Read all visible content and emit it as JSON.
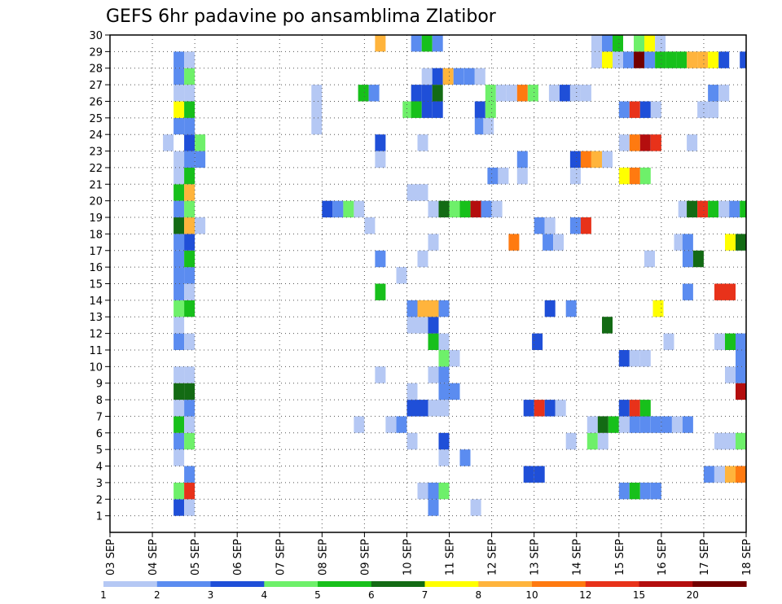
{
  "chart_data": {
    "type": "heatmap",
    "title": "GEFS 6hr padavine po ansamblima Zlatibor",
    "xlabel": "",
    "ylabel": "",
    "x_ticks": [
      "03 SEP",
      "04 SEP",
      "05 SEP",
      "06 SEP",
      "07 SEP",
      "08 SEP",
      "09 SEP",
      "10 SEP",
      "11 SEP",
      "12 SEP",
      "13 SEP",
      "14 SEP",
      "15 SEP",
      "16 SEP",
      "17 SEP",
      "18 SEP"
    ],
    "y_ticks": [
      "1",
      "2",
      "3",
      "4",
      "5",
      "6",
      "7",
      "8",
      "9",
      "10",
      "11",
      "12",
      "13",
      "14",
      "15",
      "16",
      "17",
      "18",
      "19",
      "20",
      "21",
      "22",
      "23",
      "24",
      "25",
      "26",
      "27",
      "28",
      "29",
      "30"
    ],
    "ylim": [
      0,
      30
    ],
    "grid": "dotted",
    "colorbar": {
      "labels": [
        "1",
        "2",
        "3",
        "4",
        "5",
        "6",
        "7",
        "8",
        "10",
        "12",
        "15",
        "20"
      ],
      "colors": [
        "#b5c8f4",
        "#5b8cf0",
        "#1f4fd8",
        "#6ef06a",
        "#17c01b",
        "#136b14",
        "#ffff00",
        "#ffb43c",
        "#ff7a10",
        "#e8321a",
        "#b40e0e",
        "#730000"
      ]
    },
    "cells": [
      [
        4.5,
        1,
        3
      ],
      [
        4.75,
        1,
        1
      ],
      [
        10.5,
        1,
        2
      ],
      [
        11.5,
        1,
        1
      ],
      [
        4.5,
        2,
        4
      ],
      [
        4.75,
        2,
        10
      ],
      [
        10.25,
        2,
        1
      ],
      [
        10.5,
        2,
        2
      ],
      [
        10.75,
        2,
        4
      ],
      [
        15,
        2,
        2
      ],
      [
        15.25,
        2,
        5
      ],
      [
        15.5,
        2,
        2
      ],
      [
        15.75,
        2,
        2
      ],
      [
        4.75,
        3,
        2
      ],
      [
        12.75,
        3,
        3
      ],
      [
        13,
        3,
        3
      ],
      [
        17,
        3,
        2
      ],
      [
        17.25,
        3,
        1
      ],
      [
        17.5,
        3,
        8
      ],
      [
        17.75,
        3,
        9
      ],
      [
        4.5,
        4,
        1
      ],
      [
        10.75,
        4,
        1
      ],
      [
        11.25,
        4,
        2
      ],
      [
        4.5,
        5,
        2
      ],
      [
        4.75,
        5,
        4
      ],
      [
        10,
        5,
        1
      ],
      [
        10.75,
        5,
        3
      ],
      [
        13.75,
        5,
        1
      ],
      [
        14.25,
        5,
        4
      ],
      [
        14.5,
        5,
        1
      ],
      [
        17.25,
        5,
        1
      ],
      [
        17.5,
        5,
        1
      ],
      [
        17.75,
        5,
        4
      ],
      [
        18,
        5,
        6
      ],
      [
        4.5,
        6,
        5
      ],
      [
        4.75,
        6,
        1
      ],
      [
        8.75,
        6,
        1
      ],
      [
        9.5,
        6,
        1
      ],
      [
        9.75,
        6,
        2
      ],
      [
        14.25,
        6,
        1
      ],
      [
        14.5,
        6,
        6
      ],
      [
        14.75,
        6,
        5
      ],
      [
        15,
        6,
        1
      ],
      [
        15.25,
        6,
        2
      ],
      [
        15.5,
        6,
        2
      ],
      [
        15.75,
        6,
        2
      ],
      [
        16,
        6,
        2
      ],
      [
        16.25,
        6,
        1
      ],
      [
        16.5,
        6,
        2
      ],
      [
        4.5,
        7,
        1
      ],
      [
        4.75,
        7,
        2
      ],
      [
        10,
        7,
        3
      ],
      [
        10.25,
        7,
        3
      ],
      [
        10.5,
        7,
        1
      ],
      [
        10.75,
        7,
        1
      ],
      [
        12.75,
        7,
        3
      ],
      [
        13,
        7,
        10
      ],
      [
        13.25,
        7,
        3
      ],
      [
        13.5,
        7,
        1
      ],
      [
        15,
        7,
        3
      ],
      [
        15.25,
        7,
        10
      ],
      [
        15.5,
        7,
        5
      ],
      [
        4.5,
        8,
        6
      ],
      [
        4.75,
        8,
        6
      ],
      [
        10,
        8,
        1
      ],
      [
        10.75,
        8,
        2
      ],
      [
        11,
        8,
        2
      ],
      [
        17.75,
        8,
        11
      ],
      [
        18,
        8,
        11
      ],
      [
        4.5,
        9,
        1
      ],
      [
        4.75,
        9,
        1
      ],
      [
        9.25,
        9,
        1
      ],
      [
        10.5,
        9,
        1
      ],
      [
        10.75,
        9,
        2
      ],
      [
        17.5,
        9,
        1
      ],
      [
        17.75,
        9,
        2
      ],
      [
        10.75,
        10,
        4
      ],
      [
        11,
        10,
        1
      ],
      [
        15,
        10,
        3
      ],
      [
        15.25,
        10,
        1
      ],
      [
        15.5,
        10,
        1
      ],
      [
        17.75,
        10,
        2
      ],
      [
        18,
        10,
        8
      ],
      [
        4.5,
        11,
        2
      ],
      [
        4.75,
        11,
        1
      ],
      [
        10.5,
        11,
        5
      ],
      [
        10.75,
        11,
        1
      ],
      [
        12.95,
        11,
        3
      ],
      [
        16.05,
        11,
        1
      ],
      [
        17.25,
        11,
        1
      ],
      [
        17.5,
        11,
        5
      ],
      [
        17.75,
        11,
        2
      ],
      [
        4.5,
        12,
        1
      ],
      [
        10,
        12,
        1
      ],
      [
        10.25,
        12,
        1
      ],
      [
        10.5,
        12,
        3
      ],
      [
        14.6,
        12,
        6
      ],
      [
        4.5,
        13,
        4
      ],
      [
        4.75,
        13,
        5
      ],
      [
        10,
        13,
        2
      ],
      [
        10.25,
        13,
        8
      ],
      [
        10.5,
        13,
        8
      ],
      [
        10.75,
        13,
        2
      ],
      [
        13.25,
        13,
        3
      ],
      [
        13.75,
        13,
        2
      ],
      [
        15.8,
        13,
        7
      ],
      [
        4.5,
        14,
        2
      ],
      [
        4.75,
        14,
        1
      ],
      [
        9.25,
        14,
        5
      ],
      [
        16.5,
        14,
        2
      ],
      [
        17.25,
        14,
        10
      ],
      [
        17.5,
        14,
        10
      ],
      [
        4.5,
        15,
        2
      ],
      [
        4.75,
        15,
        2
      ],
      [
        9.75,
        15,
        1
      ],
      [
        4.5,
        16,
        2
      ],
      [
        4.75,
        16,
        5
      ],
      [
        9.25,
        16,
        2
      ],
      [
        10.25,
        16,
        1
      ],
      [
        15.6,
        16,
        1
      ],
      [
        16.5,
        16,
        2
      ],
      [
        16.75,
        16,
        6
      ],
      [
        4.5,
        17,
        2
      ],
      [
        4.75,
        17,
        3
      ],
      [
        10.5,
        17,
        1
      ],
      [
        12.4,
        17,
        9
      ],
      [
        13.2,
        17,
        2
      ],
      [
        13.45,
        17,
        1
      ],
      [
        16.3,
        17,
        1
      ],
      [
        16.5,
        17,
        2
      ],
      [
        17.5,
        17,
        7
      ],
      [
        17.75,
        17,
        6
      ],
      [
        4.5,
        18,
        6
      ],
      [
        4.75,
        18,
        8
      ],
      [
        5,
        18,
        1
      ],
      [
        9,
        18,
        1
      ],
      [
        13,
        18,
        2
      ],
      [
        13.25,
        18,
        1
      ],
      [
        13.85,
        18,
        2
      ],
      [
        14.1,
        18,
        10
      ],
      [
        4.5,
        19,
        2
      ],
      [
        4.75,
        19,
        4
      ],
      [
        8,
        19,
        3
      ],
      [
        8.25,
        19,
        2
      ],
      [
        8.5,
        19,
        4
      ],
      [
        8.75,
        19,
        1
      ],
      [
        10.5,
        19,
        1
      ],
      [
        10.75,
        19,
        6
      ],
      [
        11,
        19,
        4
      ],
      [
        11.25,
        19,
        5
      ],
      [
        11.5,
        19,
        11
      ],
      [
        11.75,
        19,
        2
      ],
      [
        12,
        19,
        1
      ],
      [
        16.4,
        19,
        1
      ],
      [
        16.6,
        19,
        6
      ],
      [
        16.85,
        19,
        10
      ],
      [
        17.1,
        19,
        5
      ],
      [
        17.35,
        19,
        1
      ],
      [
        17.6,
        19,
        2
      ],
      [
        17.85,
        19,
        5
      ],
      [
        4.5,
        20,
        5
      ],
      [
        4.75,
        20,
        8
      ],
      [
        10,
        20,
        1
      ],
      [
        10.25,
        20,
        1
      ],
      [
        4.5,
        21,
        1
      ],
      [
        4.75,
        21,
        5
      ],
      [
        11.9,
        21,
        2
      ],
      [
        12.15,
        21,
        1
      ],
      [
        12.6,
        21,
        1
      ],
      [
        13.85,
        21,
        1
      ],
      [
        15,
        21,
        7
      ],
      [
        15.25,
        21,
        9
      ],
      [
        15.5,
        21,
        4
      ],
      [
        4.5,
        22,
        1
      ],
      [
        4.75,
        22,
        2
      ],
      [
        5,
        22,
        2
      ],
      [
        9.25,
        22,
        1
      ],
      [
        12.6,
        22,
        2
      ],
      [
        13.85,
        22,
        3
      ],
      [
        14.1,
        22,
        9
      ],
      [
        14.35,
        22,
        8
      ],
      [
        14.6,
        22,
        1
      ],
      [
        4.25,
        23,
        1
      ],
      [
        4.75,
        23,
        3
      ],
      [
        5,
        23,
        4
      ],
      [
        9.25,
        23,
        3
      ],
      [
        10.25,
        23,
        1
      ],
      [
        15,
        23,
        1
      ],
      [
        15.25,
        23,
        9
      ],
      [
        15.5,
        23,
        11
      ],
      [
        15.75,
        23,
        10
      ],
      [
        16.6,
        23,
        1
      ],
      [
        4.5,
        24,
        2
      ],
      [
        4.75,
        24,
        2
      ],
      [
        7.75,
        24,
        1
      ],
      [
        11.6,
        24,
        2
      ],
      [
        11.8,
        24,
        1
      ],
      [
        4.5,
        25,
        7
      ],
      [
        4.75,
        25,
        5
      ],
      [
        7.75,
        25,
        1
      ],
      [
        9.9,
        25,
        4
      ],
      [
        10.1,
        25,
        5
      ],
      [
        10.35,
        25,
        3
      ],
      [
        10.6,
        25,
        3
      ],
      [
        11.6,
        25,
        3
      ],
      [
        11.85,
        25,
        4
      ],
      [
        15,
        25,
        2
      ],
      [
        15.25,
        25,
        10
      ],
      [
        15.5,
        25,
        3
      ],
      [
        15.75,
        25,
        1
      ],
      [
        16.85,
        25,
        1
      ],
      [
        17.1,
        25,
        1
      ],
      [
        4.5,
        26,
        1
      ],
      [
        4.75,
        26,
        1
      ],
      [
        7.75,
        26,
        1
      ],
      [
        8.85,
        26,
        5
      ],
      [
        9.1,
        26,
        2
      ],
      [
        10.1,
        26,
        3
      ],
      [
        10.35,
        26,
        3
      ],
      [
        10.6,
        26,
        6
      ],
      [
        11.85,
        26,
        4
      ],
      [
        12.1,
        26,
        1
      ],
      [
        12.35,
        26,
        1
      ],
      [
        12.6,
        26,
        9
      ],
      [
        12.85,
        26,
        4
      ],
      [
        13.35,
        26,
        1
      ],
      [
        13.6,
        26,
        3
      ],
      [
        13.85,
        26,
        1
      ],
      [
        14.1,
        26,
        1
      ],
      [
        17.1,
        26,
        2
      ],
      [
        17.35,
        26,
        1
      ],
      [
        4.5,
        27,
        2
      ],
      [
        4.75,
        27,
        4
      ],
      [
        10.35,
        27,
        1
      ],
      [
        10.6,
        27,
        3
      ],
      [
        10.85,
        27,
        8
      ],
      [
        11.1,
        27,
        2
      ],
      [
        11.35,
        27,
        2
      ],
      [
        11.6,
        27,
        1
      ],
      [
        4.5,
        28,
        2
      ],
      [
        4.75,
        28,
        1
      ],
      [
        14.35,
        28,
        1
      ],
      [
        14.6,
        28,
        7
      ],
      [
        14.85,
        28,
        1
      ],
      [
        15.1,
        28,
        2
      ],
      [
        15.35,
        28,
        12
      ],
      [
        15.6,
        28,
        2
      ],
      [
        15.85,
        28,
        5
      ],
      [
        16.1,
        28,
        5
      ],
      [
        16.35,
        28,
        5
      ],
      [
        16.6,
        28,
        8
      ],
      [
        16.85,
        28,
        8
      ],
      [
        17.1,
        28,
        7
      ],
      [
        17.35,
        28,
        3
      ],
      [
        17.85,
        28,
        3
      ],
      [
        9.25,
        29,
        8
      ],
      [
        10.1,
        29,
        2
      ],
      [
        10.35,
        29,
        5
      ],
      [
        10.6,
        29,
        2
      ],
      [
        14.35,
        29,
        1
      ],
      [
        14.6,
        29,
        2
      ],
      [
        14.85,
        29,
        5
      ],
      [
        15.35,
        29,
        4
      ],
      [
        15.6,
        29,
        7
      ],
      [
        15.85,
        29,
        1
      ]
    ]
  }
}
